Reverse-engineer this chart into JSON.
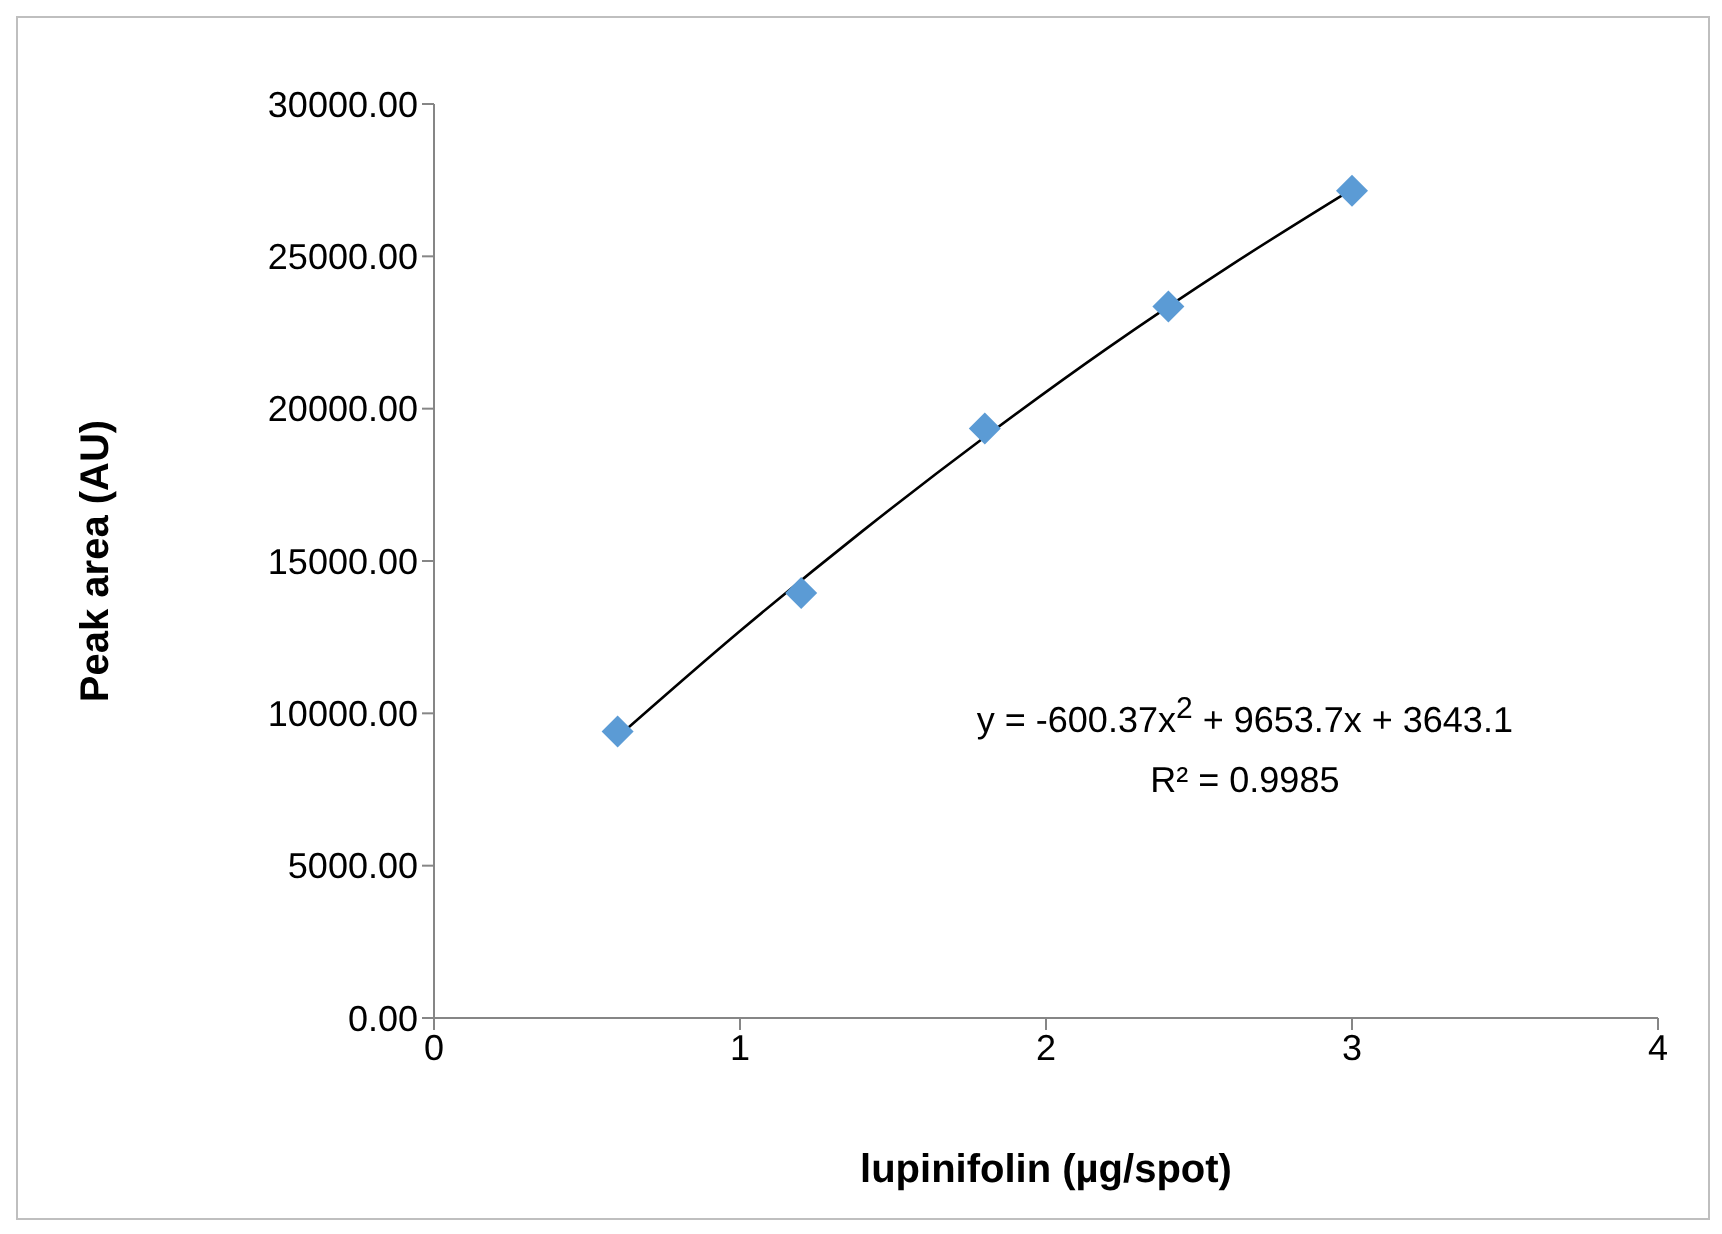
{
  "chart_data": {
    "type": "scatter",
    "xlabel": "lupinifolin (µg/spot)",
    "ylabel": "Peak area (AU)",
    "xlim": [
      0,
      4
    ],
    "xticks": [
      0,
      1,
      2,
      3,
      4
    ],
    "ylim": [
      0,
      30000
    ],
    "yticks": [
      {
        "value": 0,
        "label": "0.00"
      },
      {
        "value": 5000,
        "label": "5000.00"
      },
      {
        "value": 10000,
        "label": "10000.00"
      },
      {
        "value": 15000,
        "label": "15000.00"
      },
      {
        "value": 20000,
        "label": "20000.00"
      },
      {
        "value": 25000,
        "label": "25000.00"
      },
      {
        "value": 30000,
        "label": "30000.00"
      }
    ],
    "x": [
      0.6,
      1.2,
      1.8,
      2.4,
      3.0
    ],
    "series": [
      {
        "color": "#5b9bd5",
        "marker": "diamond",
        "values": [
          9400,
          13950,
          19350,
          23350,
          27150
        ]
      },
      {
        "type": "line",
        "color": "#000000",
        "marker": "none",
        "x": [
          0.6,
          1.0,
          1.4,
          1.8,
          2.2,
          2.6,
          3.0
        ],
        "values": [
          9220,
          12700,
          15980,
          19070,
          21980,
          24680,
          27200
        ]
      }
    ],
    "annotations": [
      "y = -600.37x$^{2}$ + 9653.7x + 3643.1",
      "R² = 0.9985"
    ],
    "grid": false,
    "legend": false
  }
}
